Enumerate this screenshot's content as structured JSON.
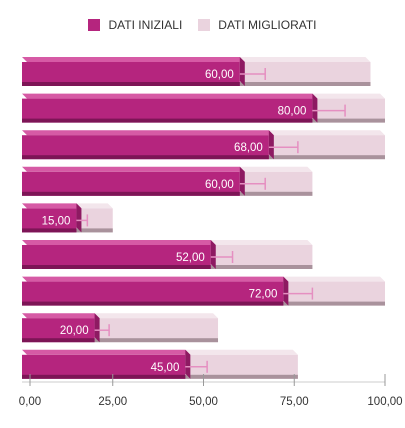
{
  "chart_data": {
    "type": "bar",
    "orientation": "horizontal",
    "stacked": true,
    "three_d": true,
    "series": [
      {
        "name": "DATI INIZIALI",
        "values": [
          60,
          80,
          68,
          60,
          15,
          52,
          72,
          20,
          45
        ],
        "color": "#b5257e",
        "data_labels": [
          "60,00",
          "80,00",
          "68,00",
          "60,00",
          "15,00",
          "52,00",
          "72,00",
          "20,00",
          "45,00"
        ]
      },
      {
        "name": "DATI MIGLIORATI",
        "values": [
          36,
          20,
          32,
          20,
          10,
          28,
          28,
          34,
          31
        ],
        "color": "#ead3de"
      }
    ],
    "error_bars": {
      "color": "#e58fc1",
      "values": [
        7,
        9,
        8,
        7,
        3,
        6,
        8,
        4,
        6
      ]
    },
    "x_ticks": [
      "0,00",
      "25,00",
      "50,00",
      "75,00",
      "100,00"
    ],
    "xlim": [
      0,
      100
    ],
    "legend_position": "top",
    "grid": false
  }
}
